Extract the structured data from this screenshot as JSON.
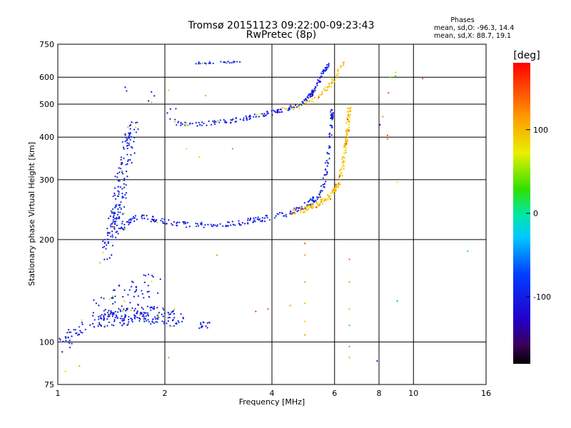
{
  "chart_data": {
    "type": "scatter",
    "title": "Tromsø 20151123 09:22:00-09:23:43",
    "subtitle": "RwPretec (8p)",
    "xlabel": "Frequency [MHz]",
    "ylabel": "Stationary phase Virtual Height [km]",
    "x_scale": "log",
    "y_scale": "log",
    "xlim": [
      1,
      16
    ],
    "ylim": [
      75,
      750
    ],
    "x_ticks": [
      1,
      2,
      4,
      6,
      8,
      10,
      16
    ],
    "x_tick_labels": [
      "1",
      "2",
      "4",
      "6",
      "8",
      "10",
      "16"
    ],
    "y_ticks": [
      75,
      100,
      200,
      300,
      400,
      500,
      600,
      750
    ],
    "y_tick_labels": [
      "75",
      "100",
      "200",
      "300",
      "400",
      "500",
      "600",
      "750"
    ],
    "grid": true,
    "stats": {
      "header": "Phases",
      "lines": [
        "mean, sd,O: -96.3, 14.4",
        "mean, sd,X: 88.7, 19.1"
      ]
    },
    "colorbar": {
      "label": "[deg]",
      "range": [
        -180,
        180
      ],
      "ticks": [
        100,
        0,
        -100
      ],
      "tick_labels": [
        "100",
        "0",
        "-100"
      ]
    },
    "traces": [
      {
        "segments": [
          [
            1.5,
            210
          ],
          [
            1.62,
            230
          ],
          [
            1.75,
            232
          ],
          [
            2.0,
            225
          ],
          [
            2.5,
            220
          ],
          [
            3.0,
            222
          ],
          [
            3.5,
            227
          ],
          [
            4.0,
            233
          ],
          [
            4.5,
            240
          ],
          [
            5.0,
            252
          ],
          [
            5.4,
            268
          ],
          [
            5.6,
            292
          ],
          [
            5.75,
            350
          ],
          [
            5.85,
            420
          ],
          [
            5.9,
            480
          ]
        ],
        "phase": -100,
        "count": 270,
        "jitter": 0.02
      },
      {
        "segments": [
          [
            2.05,
            438
          ],
          [
            2.5,
            436
          ],
          [
            3.0,
            445
          ],
          [
            3.5,
            458
          ],
          [
            4.0,
            472
          ],
          [
            4.5,
            488
          ],
          [
            5.0,
            515
          ],
          [
            5.3,
            555
          ],
          [
            5.55,
            620
          ],
          [
            5.8,
            655
          ]
        ],
        "phase": -100,
        "count": 200,
        "jitter": 0.015
      },
      {
        "segments": [
          [
            4.5,
            240
          ],
          [
            5.0,
            246
          ],
          [
            5.4,
            255
          ],
          [
            5.8,
            268
          ],
          [
            6.1,
            285
          ],
          [
            6.3,
            320
          ],
          [
            6.45,
            380
          ],
          [
            6.55,
            440
          ],
          [
            6.6,
            490
          ]
        ],
        "phase": 95,
        "count": 190,
        "jitter": 0.02
      },
      {
        "segments": [
          [
            4.2,
            482
          ],
          [
            4.8,
            492
          ],
          [
            5.2,
            510
          ],
          [
            5.5,
            535
          ],
          [
            5.8,
            565
          ],
          [
            6.0,
            595
          ],
          [
            6.2,
            635
          ],
          [
            6.4,
            665
          ]
        ],
        "phase": 95,
        "count": 60,
        "jitter": 0.015
      },
      {
        "segments": [
          [
            1.45,
            215
          ],
          [
            1.5,
            280
          ],
          [
            1.55,
            340
          ],
          [
            1.6,
            400
          ],
          [
            1.65,
            420
          ]
        ],
        "phase": -100,
        "count": 120,
        "jitter": 0.08
      },
      {
        "segments": [
          [
            1.35,
            180
          ],
          [
            1.4,
            200
          ],
          [
            1.45,
            230
          ],
          [
            1.5,
            260
          ]
        ],
        "phase": -100,
        "count": 70,
        "jitter": 0.07
      },
      {
        "segments": [
          [
            1.25,
            117
          ],
          [
            1.5,
            118
          ],
          [
            1.7,
            122
          ],
          [
            1.9,
            120
          ],
          [
            2.2,
            118
          ]
        ],
        "phase": -100,
        "count": 200,
        "jitter": 0.06
      },
      {
        "segments": [
          [
            1.3,
            125
          ],
          [
            1.5,
            135
          ],
          [
            1.7,
            145
          ],
          [
            1.9,
            150
          ]
        ],
        "phase": -100,
        "count": 60,
        "jitter": 0.08
      },
      {
        "segments": [
          [
            1.02,
            97
          ],
          [
            1.07,
            102
          ],
          [
            1.12,
            108
          ],
          [
            1.18,
            112
          ]
        ],
        "phase": -100,
        "count": 35,
        "jitter": 0.05
      },
      {
        "segments": [
          [
            2.4,
            660
          ],
          [
            2.7,
            662
          ],
          [
            3.0,
            665
          ],
          [
            3.25,
            667
          ]
        ],
        "phase": -100,
        "count": 25,
        "jitter": 0.006
      },
      {
        "segments": [
          [
            2.5,
            110
          ],
          [
            2.6,
            113
          ],
          [
            2.7,
            112
          ]
        ],
        "phase": -100,
        "count": 14,
        "jitter": 0.03
      },
      {
        "segments": [
          [
            1.55,
            570
          ],
          [
            1.85,
            525
          ],
          [
            2.05,
            480
          ],
          [
            2.2,
            455
          ]
        ],
        "phase": -100,
        "count": 12,
        "jitter": 0.05
      }
    ],
    "scatter_points": [
      {
        "x": 4.95,
        "y": 195,
        "phase": 150
      },
      {
        "x": 4.95,
        "y": 180,
        "phase": 110
      },
      {
        "x": 4.95,
        "y": 150,
        "phase": 120
      },
      {
        "x": 4.95,
        "y": 130,
        "phase": 100
      },
      {
        "x": 4.95,
        "y": 115,
        "phase": 90
      },
      {
        "x": 4.95,
        "y": 105,
        "phase": 110
      },
      {
        "x": 6.6,
        "y": 175,
        "phase": 140
      },
      {
        "x": 6.6,
        "y": 150,
        "phase": 120
      },
      {
        "x": 6.6,
        "y": 125,
        "phase": 100
      },
      {
        "x": 6.6,
        "y": 112,
        "phase": 20
      },
      {
        "x": 6.6,
        "y": 97,
        "phase": 130
      },
      {
        "x": 6.6,
        "y": 90,
        "phase": 110
      },
      {
        "x": 3.6,
        "y": 123,
        "phase": 160
      },
      {
        "x": 3.9,
        "y": 125,
        "phase": 150
      },
      {
        "x": 4.5,
        "y": 128,
        "phase": 120
      },
      {
        "x": 7.9,
        "y": 88,
        "phase": -120
      },
      {
        "x": 8.05,
        "y": 435,
        "phase": -130
      },
      {
        "x": 8.2,
        "y": 460,
        "phase": 120
      },
      {
        "x": 8.45,
        "y": 405,
        "phase": 150
      },
      {
        "x": 8.45,
        "y": 395,
        "phase": 130
      },
      {
        "x": 8.5,
        "y": 540,
        "phase": 150
      },
      {
        "x": 8.6,
        "y": 600,
        "phase": 40
      },
      {
        "x": 8.9,
        "y": 620,
        "phase": 60
      },
      {
        "x": 8.9,
        "y": 605,
        "phase": 30
      },
      {
        "x": 9.0,
        "y": 295,
        "phase": 80
      },
      {
        "x": 9.0,
        "y": 132,
        "phase": -40
      },
      {
        "x": 10.6,
        "y": 595,
        "phase": 150
      },
      {
        "x": 14.2,
        "y": 185,
        "phase": -20
      },
      {
        "x": 2.05,
        "y": 550,
        "phase": 90
      },
      {
        "x": 2.6,
        "y": 530,
        "phase": 40
      },
      {
        "x": 2.3,
        "y": 370,
        "phase": 80
      },
      {
        "x": 2.5,
        "y": 350,
        "phase": 60
      },
      {
        "x": 3.1,
        "y": 370,
        "phase": 20
      },
      {
        "x": 2.8,
        "y": 180,
        "phase": 40
      },
      {
        "x": 2.05,
        "y": 90,
        "phase": 120
      },
      {
        "x": 1.15,
        "y": 85,
        "phase": 110
      },
      {
        "x": 1.05,
        "y": 82,
        "phase": 90
      },
      {
        "x": 2.3,
        "y": 440,
        "phase": 90
      }
    ]
  }
}
